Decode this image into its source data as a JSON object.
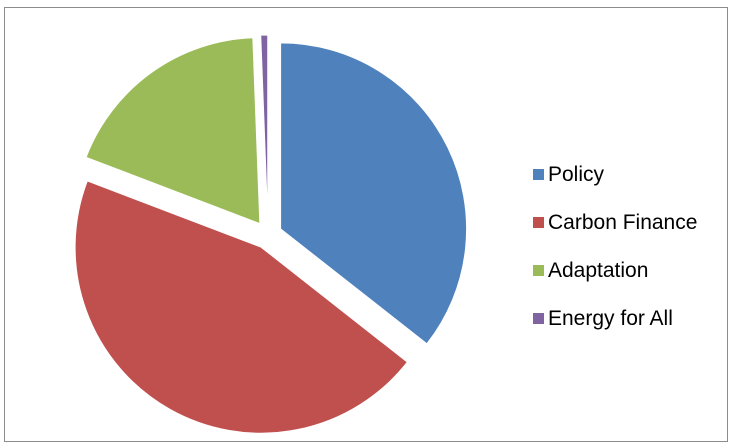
{
  "chart_data": {
    "type": "pie",
    "title": "",
    "legend_position": "right",
    "series": [
      {
        "name": "Policy",
        "value": 35.6,
        "color": "#4F81BD"
      },
      {
        "name": "Carbon Finance",
        "value": 45.2,
        "color": "#C0504D"
      },
      {
        "name": "Adaptation",
        "value": 18.6,
        "color": "#9BBB59"
      },
      {
        "name": "Energy for All",
        "value": 0.6,
        "color": "#8064A2"
      }
    ],
    "exploded": true,
    "start_angle": "12 o'clock",
    "direction": "clockwise"
  }
}
